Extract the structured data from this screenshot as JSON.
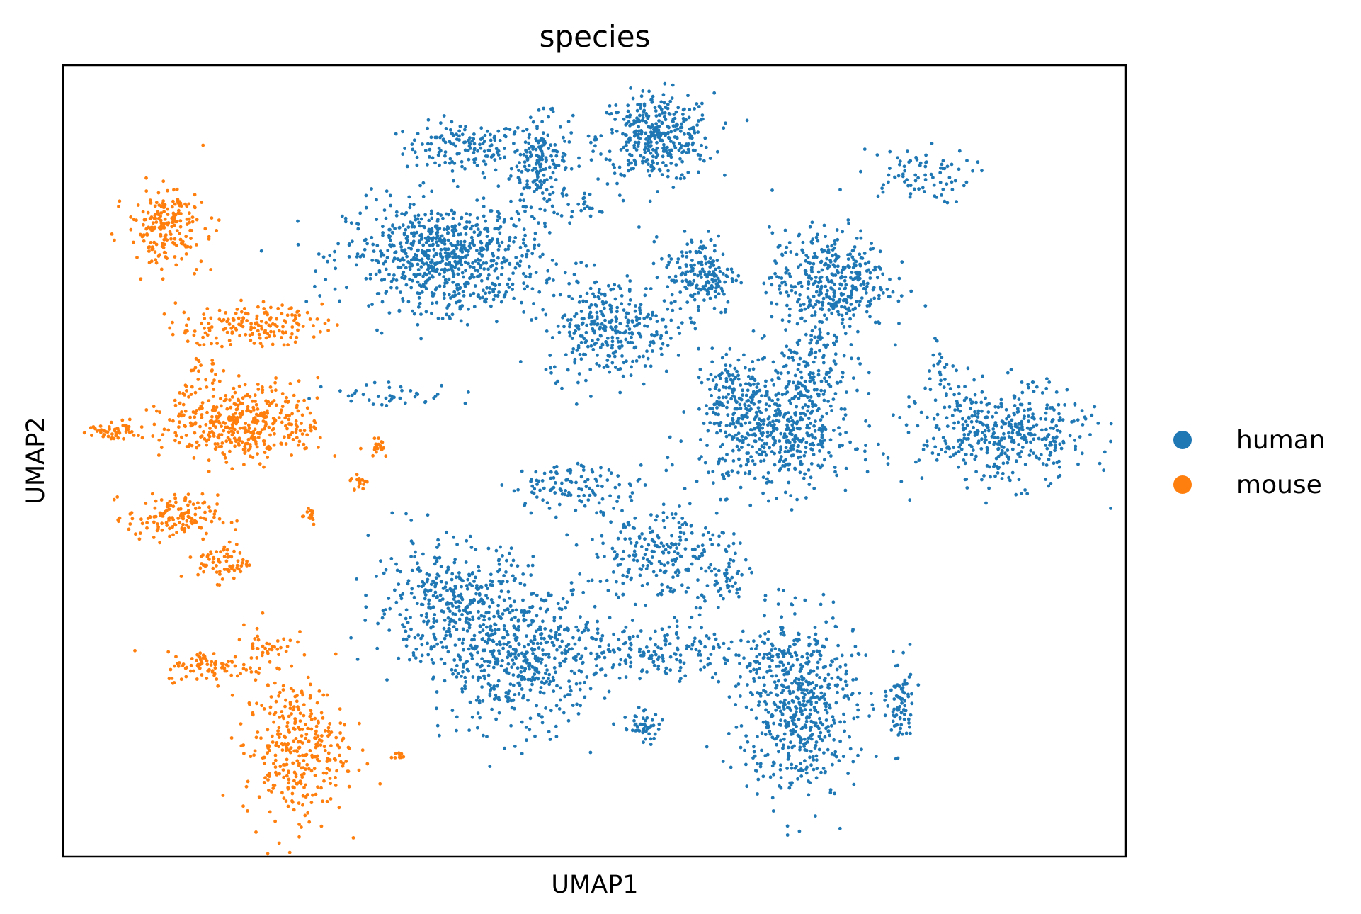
{
  "chart_data": {
    "type": "scatter",
    "title": "species",
    "xlabel": "UMAP1",
    "ylabel": "UMAP2",
    "ticks": "none",
    "grid": false,
    "legend_position": "right",
    "series": [
      {
        "name": "human",
        "color": "#1f77b4",
        "clusters": [
          {
            "cx": 5.2,
            "cy": 8.9,
            "sx": 0.45,
            "sy": 0.2,
            "n": 140
          },
          {
            "cx": 6.4,
            "cy": 8.7,
            "sx": 0.22,
            "sy": 0.35,
            "n": 180
          },
          {
            "cx": 8.2,
            "cy": 9.05,
            "sx": 0.45,
            "sy": 0.35,
            "n": 380
          },
          {
            "cx": 7.1,
            "cy": 8.05,
            "sx": 0.25,
            "sy": 0.12,
            "n": 25
          },
          {
            "cx": 12.2,
            "cy": 8.45,
            "sx": 0.45,
            "sy": 0.22,
            "n": 80
          },
          {
            "cx": 4.9,
            "cy": 7.2,
            "sx": 0.75,
            "sy": 0.42,
            "n": 720
          },
          {
            "cx": 5.2,
            "cy": 6.5,
            "sx": 0.35,
            "sy": 0.12,
            "n": 40
          },
          {
            "cx": 8.9,
            "cy": 6.9,
            "sx": 0.28,
            "sy": 0.32,
            "n": 180
          },
          {
            "cx": 7.5,
            "cy": 6.05,
            "sx": 0.5,
            "sy": 0.4,
            "n": 320
          },
          {
            "cx": 10.9,
            "cy": 6.8,
            "sx": 0.45,
            "sy": 0.4,
            "n": 380
          },
          {
            "cx": 10.6,
            "cy": 5.6,
            "sx": 0.3,
            "sy": 0.45,
            "n": 140
          },
          {
            "cx": 9.4,
            "cy": 5.1,
            "sx": 0.22,
            "sy": 0.3,
            "n": 100
          },
          {
            "cx": 10.1,
            "cy": 4.4,
            "sx": 0.6,
            "sy": 0.45,
            "n": 520
          },
          {
            "cx": 13.6,
            "cy": 4.35,
            "sx": 0.65,
            "sy": 0.38,
            "n": 430
          },
          {
            "cx": 12.7,
            "cy": 5.4,
            "sx": 0.18,
            "sy": 0.28,
            "n": 30
          },
          {
            "cx": 4.1,
            "cy": 5.0,
            "sx": 0.5,
            "sy": 0.1,
            "n": 40
          },
          {
            "cx": 7.0,
            "cy": 3.55,
            "sx": 0.55,
            "sy": 0.18,
            "n": 110
          },
          {
            "cx": 8.3,
            "cy": 2.5,
            "sx": 0.55,
            "sy": 0.4,
            "n": 240
          },
          {
            "cx": 9.3,
            "cy": 2.05,
            "sx": 0.15,
            "sy": 0.15,
            "n": 30
          },
          {
            "cx": 5.0,
            "cy": 1.7,
            "sx": 0.6,
            "sy": 0.5,
            "n": 360
          },
          {
            "cx": 6.1,
            "cy": 0.8,
            "sx": 0.6,
            "sy": 0.6,
            "n": 480
          },
          {
            "cx": 8.4,
            "cy": 0.95,
            "sx": 1.2,
            "sy": 0.22,
            "n": 250
          },
          {
            "cx": 10.4,
            "cy": 0.1,
            "sx": 0.45,
            "sy": 0.7,
            "n": 560
          },
          {
            "cx": 12.0,
            "cy": 0.1,
            "sx": 0.1,
            "sy": 0.35,
            "n": 80
          },
          {
            "cx": 8.0,
            "cy": -0.25,
            "sx": 0.15,
            "sy": 0.12,
            "n": 50
          }
        ]
      },
      {
        "name": "mouse",
        "color": "#ff7f0e",
        "clusters": [
          {
            "cx": 0.6,
            "cy": 7.65,
            "sx": 0.3,
            "sy": 0.3,
            "n": 200
          },
          {
            "cx": 1.9,
            "cy": 6.1,
            "sx": 0.55,
            "sy": 0.15,
            "n": 160
          },
          {
            "cx": 1.2,
            "cy": 5.5,
            "sx": 0.15,
            "sy": 0.3,
            "n": 30
          },
          {
            "cx": 1.8,
            "cy": 4.55,
            "sx": 0.6,
            "sy": 0.3,
            "n": 420
          },
          {
            "cx": -0.2,
            "cy": 4.4,
            "sx": 0.2,
            "sy": 0.08,
            "n": 50
          },
          {
            "cx": 0.7,
            "cy": 3.05,
            "sx": 0.35,
            "sy": 0.18,
            "n": 140
          },
          {
            "cx": 1.5,
            "cy": 2.35,
            "sx": 0.2,
            "sy": 0.15,
            "n": 70
          },
          {
            "cx": 2.8,
            "cy": 3.1,
            "sx": 0.08,
            "sy": 0.08,
            "n": 15
          },
          {
            "cx": 3.9,
            "cy": 4.2,
            "sx": 0.08,
            "sy": 0.1,
            "n": 18
          },
          {
            "cx": 3.6,
            "cy": 3.6,
            "sx": 0.07,
            "sy": 0.08,
            "n": 16
          },
          {
            "cx": 1.3,
            "cy": 0.7,
            "sx": 0.35,
            "sy": 0.12,
            "n": 90
          },
          {
            "cx": 2.2,
            "cy": 1.05,
            "sx": 0.2,
            "sy": 0.2,
            "n": 40
          },
          {
            "cx": 2.6,
            "cy": -0.6,
            "sx": 0.4,
            "sy": 0.55,
            "n": 330
          },
          {
            "cx": 4.2,
            "cy": -0.7,
            "sx": 0.05,
            "sy": 0.04,
            "n": 10
          }
        ]
      }
    ],
    "xlim": [
      -1,
      15.5
    ],
    "ylim": [
      -2.3,
      10.2
    ]
  }
}
